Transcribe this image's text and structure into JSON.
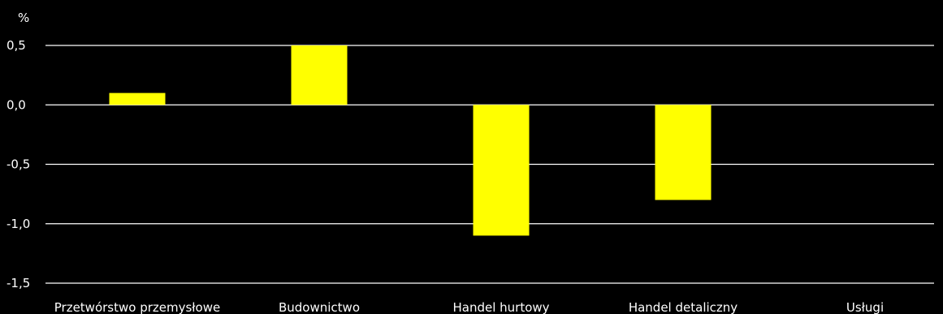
{
  "chart_data": {
    "type": "bar",
    "unit": "%",
    "categories": [
      "Przetwórstwo przemysłowe",
      "Budownictwo",
      "Handel hurtowy",
      "Handel detaliczny",
      "Usługi"
    ],
    "values": [
      0.1,
      0.5,
      -1.1,
      -0.8,
      0.0
    ],
    "ylim": [
      -1.5,
      0.5
    ],
    "yticks": [
      0.5,
      0.0,
      -0.5,
      -1.0,
      -1.5
    ],
    "ytick_labels": [
      "0,5",
      "0,0",
      "-0,5",
      "-1,0",
      "-1,5"
    ],
    "grid": true,
    "legend": "none",
    "colors": {
      "background": "#000000",
      "bar": "#ffff00",
      "grid": "#ffffff",
      "text": "#ffffff"
    }
  }
}
